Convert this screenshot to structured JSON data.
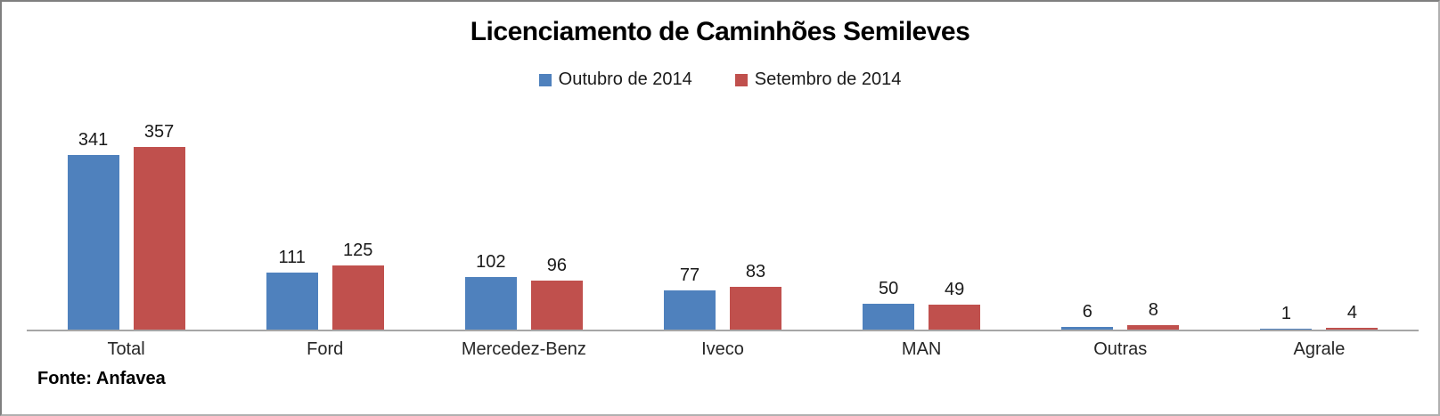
{
  "chart_data": {
    "type": "bar",
    "title": "Licenciamento de Caminhões Semileves",
    "categories": [
      "Total",
      "Ford",
      "Mercedez-Benz",
      "Iveco",
      "MAN",
      "Outras",
      "Agrale"
    ],
    "series": [
      {
        "name": "Outubro de 2014",
        "color": "#4F81BD",
        "values": [
          341,
          111,
          102,
          77,
          50,
          6,
          1
        ]
      },
      {
        "name": "Setembro de 2014",
        "color": "#C0504D",
        "values": [
          357,
          125,
          96,
          83,
          49,
          8,
          4
        ]
      }
    ],
    "ylim": [
      0,
      400
    ],
    "grid": false,
    "legend_position": "top-center",
    "value_labels": true,
    "axis_line_color": "#A6A6A6",
    "source_note": "Fonte: Anfavea"
  },
  "layout_colors": {
    "background": "#FFFFFF",
    "border": "#7F7F7F",
    "text": "#1A1A1A"
  }
}
